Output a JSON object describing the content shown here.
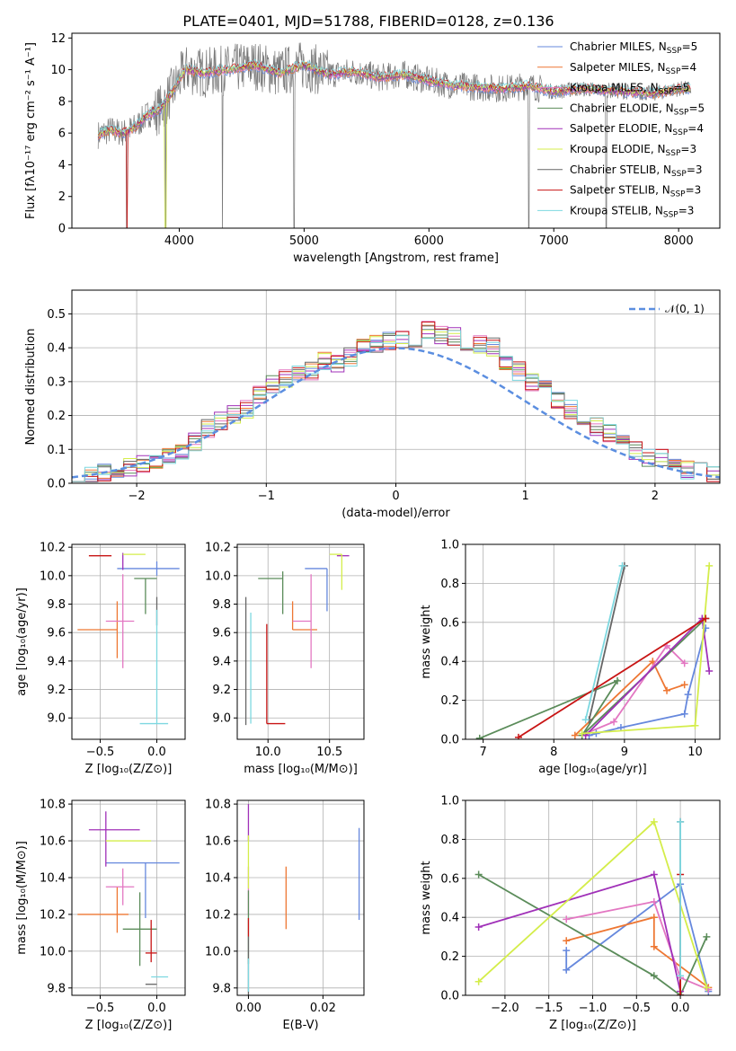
{
  "colors": {
    "chabrier_miles": "#6688dd",
    "salpeter_miles": "#ee7733",
    "kroupa_miles": "#e377c2",
    "chabrier_elodie": "#5b8c5a",
    "salpeter_elodie": "#a030b8",
    "kroupa_elodie": "#d4ed4a",
    "chabrier_stelib": "#666666",
    "salpeter_stelib": "#c81414",
    "kroupa_stelib": "#7dd8e0",
    "normal_dash": "#5b8ee0"
  },
  "chart_data": [
    {
      "id": "spectrum",
      "type": "line",
      "title": "PLATE=0401, MJD=51788, FIBERID=0128, z=0.136",
      "xlabel": "wavelength [Angstrom, rest frame]",
      "ylabel": "Flux [fλ10⁻¹⁷ erg cm⁻² s⁻¹ A⁻¹]",
      "xlim": [
        3140,
        8330
      ],
      "ylim": [
        0,
        12.3
      ],
      "xticks": [
        "4000",
        "5000",
        "6000",
        "7000",
        "8000"
      ],
      "yticks": [
        "0",
        "2",
        "4",
        "6",
        "8",
        "10",
        "12"
      ],
      "continuum": {
        "x": [
          3350,
          3450,
          3550,
          3650,
          3750,
          3850,
          3950,
          4050,
          4200,
          4400,
          4600,
          4800,
          5000,
          5200,
          5400,
          5600,
          5800,
          6000,
          6200,
          6400,
          6600,
          6800,
          7000,
          7200,
          7400,
          7600,
          7800,
          8000,
          8100
        ],
        "y": [
          5.9,
          6.2,
          6.0,
          6.4,
          7.2,
          7.5,
          8.7,
          10.0,
          9.8,
          10.0,
          10.3,
          9.8,
          10.3,
          9.7,
          9.9,
          9.5,
          9.7,
          9.3,
          9.0,
          8.9,
          8.8,
          9.0,
          8.6,
          8.8,
          8.7,
          8.6,
          8.5,
          8.8,
          8.8
        ]
      },
      "legend": [
        {
          "label": "Chabrier MILES, N",
          "sub": "SSP",
          "suffix": "=5",
          "color_key": "chabrier_miles"
        },
        {
          "label": "Salpeter MILES, N",
          "sub": "SSP",
          "suffix": "=4",
          "color_key": "salpeter_miles"
        },
        {
          "label": "Kroupa MILES, N",
          "sub": "SSP",
          "suffix": "=5",
          "color_key": "kroupa_miles"
        },
        {
          "label": "Chabrier ELODIE, N",
          "sub": "SSP",
          "suffix": "=5",
          "color_key": "chabrier_elodie"
        },
        {
          "label": "Salpeter ELODIE, N",
          "sub": "SSP",
          "suffix": "=4",
          "color_key": "salpeter_elodie"
        },
        {
          "label": "Kroupa ELODIE, N",
          "sub": "SSP",
          "suffix": "=3",
          "color_key": "kroupa_elodie"
        },
        {
          "label": "Chabrier STELIB, N",
          "sub": "SSP",
          "suffix": "=3",
          "color_key": "chabrier_stelib"
        },
        {
          "label": "Salpeter STELIB, N",
          "sub": "SSP",
          "suffix": "=3",
          "color_key": "salpeter_stelib"
        },
        {
          "label": "Kroupa STELIB, N",
          "sub": "SSP",
          "suffix": "=3",
          "color_key": "kroupa_stelib"
        }
      ]
    },
    {
      "id": "residuals",
      "type": "line",
      "xlabel": "(data-model)/error",
      "ylabel": "Normed distribution",
      "xlim": [
        -2.5,
        2.5
      ],
      "ylim": [
        0,
        0.57
      ],
      "xticks": [
        "−2",
        "−1",
        "0",
        "1",
        "2"
      ],
      "yticks": [
        "0.0",
        "0.1",
        "0.2",
        "0.3",
        "0.4",
        "0.5"
      ],
      "legend_label": "𝒩(0, 1)",
      "hist_envelope": [
        0.02,
        0.022,
        0.03,
        0.04,
        0.05,
        0.06,
        0.07,
        0.08,
        0.09,
        0.12,
        0.16,
        0.18,
        0.2,
        0.22,
        0.26,
        0.29,
        0.31,
        0.32,
        0.33,
        0.36,
        0.35,
        0.37,
        0.4,
        0.41,
        0.42,
        0.42,
        0.43,
        0.45,
        0.44,
        0.43,
        0.42,
        0.41,
        0.4,
        0.36,
        0.33,
        0.3,
        0.28,
        0.24,
        0.22,
        0.2,
        0.17,
        0.15,
        0.12,
        0.1,
        0.08,
        0.07,
        0.05,
        0.04,
        0.03,
        0.03
      ]
    },
    {
      "id": "age_vs_Z",
      "type": "scatter",
      "xlabel": "Z [log₁₀(Z/Z⊙)]",
      "ylabel": "age  [log₁₀(age/yr)]",
      "xlim": [
        -0.75,
        0.25
      ],
      "ylim": [
        8.85,
        10.22
      ],
      "xticks": [
        "−0.5",
        "0.0"
      ],
      "yticks": [
        "9.0",
        "9.2",
        "9.4",
        "9.6",
        "9.8",
        "10.0",
        "10.2"
      ],
      "points": [
        {
          "c": "chabrier_miles",
          "x": 0.0,
          "y": 10.05,
          "xl": 0.35,
          "xh": 0.2,
          "yl": 0.05,
          "yh": 0.05
        },
        {
          "c": "salpeter_miles",
          "x": -0.35,
          "y": 9.62,
          "xl": 0.35,
          "xh": 0.0,
          "yl": 0.2,
          "yh": 0.2
        },
        {
          "c": "kroupa_miles",
          "x": -0.3,
          "y": 9.68,
          "xl": 0.15,
          "xh": 0.1,
          "yl": 0.33,
          "yh": 0.33
        },
        {
          "c": "chabrier_elodie",
          "x": -0.1,
          "y": 9.98,
          "xl": 0.1,
          "xh": 0.1,
          "yl": 0.25,
          "yh": 0.0
        },
        {
          "c": "salpeter_elodie",
          "x": -0.3,
          "y": 10.14,
          "xl": 0.0,
          "xh": 0.0,
          "yl": 0.1,
          "yh": 0.02
        },
        {
          "c": "kroupa_elodie",
          "x": -0.2,
          "y": 10.15,
          "xl": 0.1,
          "xh": 0.1,
          "yl": 0.0,
          "yh": 0.0
        },
        {
          "c": "chabrier_stelib",
          "x": 0.0,
          "y": 9.75,
          "xl": 0.0,
          "xh": 0.0,
          "yl": 0.1,
          "yh": 0.1
        },
        {
          "c": "salpeter_stelib",
          "x": -0.5,
          "y": 10.14,
          "xl": 0.1,
          "xh": 0.1,
          "yl": 0.0,
          "yh": 0.0
        },
        {
          "c": "kroupa_stelib",
          "x": 0.0,
          "y": 8.96,
          "xl": 0.15,
          "xh": 0.1,
          "yl": 0.0,
          "yh": 0.8
        }
      ]
    },
    {
      "id": "age_vs_mass",
      "type": "scatter",
      "xlabel": "mass [log₁₀(M/M⊙)]",
      "xlim": [
        9.75,
        10.78
      ],
      "ylim": [
        8.85,
        10.22
      ],
      "xticks": [
        "10.0",
        "10.5"
      ],
      "yticks": [
        "9.0",
        "9.2",
        "9.4",
        "9.6",
        "9.8",
        "10.0",
        "10.2"
      ],
      "points": [
        {
          "c": "chabrier_miles",
          "x": 10.48,
          "y": 10.05,
          "xl": 0.18,
          "xh": 0.0,
          "yl": 0.3,
          "yh": 0.0
        },
        {
          "c": "salpeter_miles",
          "x": 10.2,
          "y": 9.62,
          "xl": 0.0,
          "xh": 0.2,
          "yl": 0.0,
          "yh": 0.2
        },
        {
          "c": "kroupa_miles",
          "x": 10.35,
          "y": 9.68,
          "xl": 0.15,
          "xh": 0.0,
          "yl": 0.33,
          "yh": 0.33
        },
        {
          "c": "chabrier_elodie",
          "x": 10.12,
          "y": 9.98,
          "xl": 0.2,
          "xh": 0.0,
          "yl": 0.25,
          "yh": 0.05
        },
        {
          "c": "salpeter_elodie",
          "x": 10.66,
          "y": 10.14,
          "xl": 0.1,
          "xh": 0.0,
          "yl": 0.0,
          "yh": 0.0
        },
        {
          "c": "kroupa_elodie",
          "x": 10.6,
          "y": 10.15,
          "xl": 0.1,
          "xh": 0.0,
          "yl": 0.25,
          "yh": 0.0
        },
        {
          "c": "chabrier_stelib",
          "x": 9.82,
          "y": 9.0,
          "xl": 0.0,
          "xh": 0.0,
          "yl": 0.05,
          "yh": 0.85
        },
        {
          "c": "salpeter_stelib",
          "x": 9.99,
          "y": 8.96,
          "xl": 0.0,
          "xh": 0.15,
          "yl": 0.0,
          "yh": 0.7
        },
        {
          "c": "kroupa_stelib",
          "x": 9.86,
          "y": 8.96,
          "xl": 0.0,
          "xh": 0.0,
          "yl": 0.0,
          "yh": 0.78
        }
      ]
    },
    {
      "id": "massweight_vs_age",
      "type": "line",
      "xlabel": "age  [log₁₀(age/yr)]",
      "ylabel": "mass weight",
      "xlim": [
        6.75,
        10.35
      ],
      "ylim": [
        0,
        1.0
      ],
      "xticks": [
        "7",
        "8",
        "9",
        "10"
      ],
      "yticks": [
        "0.0",
        "0.2",
        "0.4",
        "0.6",
        "0.8",
        "1.0"
      ],
      "series": [
        {
          "c": "chabrier_miles",
          "x": [
            8.5,
            8.6,
            8.95,
            9.85,
            9.9,
            10.15
          ],
          "y": [
            0.02,
            0.03,
            0.06,
            0.13,
            0.23,
            0.57
          ]
        },
        {
          "c": "salpeter_miles",
          "x": [
            8.3,
            9.4,
            9.6,
            9.85
          ],
          "y": [
            0.02,
            0.4,
            0.25,
            0.28
          ]
        },
        {
          "c": "kroupa_miles",
          "x": [
            8.45,
            8.85,
            9.6,
            9.85
          ],
          "y": [
            0.03,
            0.09,
            0.48,
            0.39
          ]
        },
        {
          "c": "chabrier_elodie",
          "x": [
            6.95,
            8.9,
            8.4,
            10.15
          ],
          "y": [
            0.005,
            0.3,
            0.02,
            0.62
          ]
        },
        {
          "c": "salpeter_elodie",
          "x": [
            8.45,
            10.1,
            10.2
          ],
          "y": [
            0.02,
            0.62,
            0.35
          ]
        },
        {
          "c": "kroupa_elodie",
          "x": [
            8.4,
            10.0,
            10.2
          ],
          "y": [
            0.03,
            0.07,
            0.89
          ]
        },
        {
          "c": "chabrier_stelib",
          "x": [
            8.5,
            9.0
          ],
          "y": [
            0.1,
            0.89
          ]
        },
        {
          "c": "salpeter_stelib",
          "x": [
            7.5,
            10.15
          ],
          "y": [
            0.01,
            0.62
          ]
        },
        {
          "c": "kroupa_stelib",
          "x": [
            8.45,
            8.97
          ],
          "y": [
            0.1,
            0.89
          ]
        }
      ]
    },
    {
      "id": "mass_vs_Z",
      "type": "scatter",
      "xlabel": "Z [log₁₀(Z/Z⊙)]",
      "ylabel": "mass [log₁₀(M/M⊙)]",
      "xlim": [
        -0.75,
        0.25
      ],
      "ylim": [
        9.76,
        10.82
      ],
      "xticks": [
        "−0.5",
        "0.0"
      ],
      "yticks": [
        "9.8",
        "10.0",
        "10.2",
        "10.4",
        "10.6",
        "10.8"
      ],
      "points": [
        {
          "c": "chabrier_miles",
          "x": -0.1,
          "y": 10.48,
          "xl": 0.35,
          "xh": 0.3,
          "yl": 0.3,
          "yh": 0.0
        },
        {
          "c": "salpeter_miles",
          "x": -0.35,
          "y": 10.2,
          "xl": 0.35,
          "xh": 0.1,
          "yl": 0.1,
          "yh": 0.15
        },
        {
          "c": "kroupa_miles",
          "x": -0.3,
          "y": 10.35,
          "xl": 0.15,
          "xh": 0.1,
          "yl": 0.1,
          "yh": 0.1
        },
        {
          "c": "chabrier_elodie",
          "x": -0.15,
          "y": 10.12,
          "xl": 0.15,
          "xh": 0.15,
          "yl": 0.2,
          "yh": 0.2
        },
        {
          "c": "salpeter_elodie",
          "x": -0.45,
          "y": 10.66,
          "xl": 0.15,
          "xh": 0.3,
          "yl": 0.2,
          "yh": 0.1
        },
        {
          "c": "kroupa_elodie",
          "x": -0.3,
          "y": 10.6,
          "xl": 0.15,
          "xh": 0.25,
          "yl": 0.0,
          "yh": 0.0
        },
        {
          "c": "chabrier_stelib",
          "x": -0.05,
          "y": 9.82,
          "xl": 0.05,
          "xh": 0.05,
          "yl": 0.0,
          "yh": 0.0
        },
        {
          "c": "salpeter_stelib",
          "x": -0.05,
          "y": 9.99,
          "xl": 0.05,
          "xh": 0.05,
          "yl": 0.05,
          "yh": 0.18
        },
        {
          "c": "kroupa_stelib",
          "x": 0.0,
          "y": 9.86,
          "xl": 0.05,
          "xh": 0.1,
          "yl": 0.0,
          "yh": 0.0
        }
      ]
    },
    {
      "id": "mass_vs_ebv",
      "type": "scatter",
      "xlabel": "E(B-V)",
      "xlim": [
        -0.003,
        0.031
      ],
      "ylim": [
        9.76,
        10.82
      ],
      "xticks": [
        "0.00",
        "0.02"
      ],
      "yticks": [
        "9.8",
        "10.0",
        "10.2",
        "10.4",
        "10.6",
        "10.8"
      ],
      "vlines": [
        {
          "c": "chabrier_miles",
          "x": 0.0297,
          "y0": 10.17,
          "y1": 10.67
        },
        {
          "c": "salpeter_miles",
          "x": 0.0101,
          "y0": 10.12,
          "y1": 10.46
        },
        {
          "c": "kroupa_miles",
          "x": 0.0,
          "y0": 10.2,
          "y1": 10.46
        },
        {
          "c": "chabrier_elodie",
          "x": 0.0,
          "y0": 9.93,
          "y1": 10.33
        },
        {
          "c": "salpeter_elodie",
          "x": 0.0,
          "y0": 10.6,
          "y1": 10.8
        },
        {
          "c": "kroupa_elodie",
          "x": 0.0,
          "y0": 10.34,
          "y1": 10.63
        },
        {
          "c": "chabrier_stelib",
          "x": 0.0,
          "y0": 9.76,
          "y1": 10.08
        },
        {
          "c": "salpeter_stelib",
          "x": 0.0,
          "y0": 10.08,
          "y1": 10.18
        },
        {
          "c": "kroupa_stelib",
          "x": 0.0,
          "y0": 9.78,
          "y1": 9.96
        }
      ]
    },
    {
      "id": "massweight_vs_Z",
      "type": "line",
      "xlabel": "Z [log₁₀(Z/Z⊙)]",
      "ylabel": "mass weight",
      "xlim": [
        -2.45,
        0.45
      ],
      "ylim": [
        0,
        1.0
      ],
      "xticks": [
        "−2.0",
        "−1.5",
        "−1.0",
        "−0.5",
        "0.0"
      ],
      "yticks": [
        "0.0",
        "0.2",
        "0.4",
        "0.6",
        "0.8",
        "1.0"
      ],
      "series": [
        {
          "c": "chabrier_miles",
          "x": [
            -1.3,
            -1.3,
            0.0,
            0.32
          ],
          "y": [
            0.23,
            0.13,
            0.57,
            0.02
          ]
        },
        {
          "c": "salpeter_miles",
          "x": [
            -1.3,
            -0.3,
            -0.3,
            0.32
          ],
          "y": [
            0.28,
            0.4,
            0.25,
            0.04
          ]
        },
        {
          "c": "kroupa_miles",
          "x": [
            -1.3,
            -0.3,
            0.0,
            0.32
          ],
          "y": [
            0.39,
            0.48,
            0.09,
            0.03
          ]
        },
        {
          "c": "chabrier_elodie",
          "x": [
            -2.3,
            -0.3,
            0.0,
            0.3
          ],
          "y": [
            0.62,
            0.1,
            0.0,
            0.3
          ]
        },
        {
          "c": "salpeter_elodie",
          "x": [
            -2.3,
            -0.3,
            0.0
          ],
          "y": [
            0.35,
            0.62,
            0.02
          ]
        },
        {
          "c": "kroupa_elodie",
          "x": [
            -2.3,
            -0.3,
            0.3
          ],
          "y": [
            0.07,
            0.89,
            0.04
          ]
        },
        {
          "c": "chabrier_stelib",
          "x": [
            0.0,
            0.0
          ],
          "y": [
            0.0,
            0.89
          ]
        },
        {
          "c": "salpeter_stelib",
          "x": [
            0.0,
            0.0
          ],
          "y": [
            0.0,
            0.62
          ]
        },
        {
          "c": "kroupa_stelib",
          "x": [
            0.0,
            0.0
          ],
          "y": [
            0.1,
            0.89
          ]
        }
      ]
    }
  ]
}
